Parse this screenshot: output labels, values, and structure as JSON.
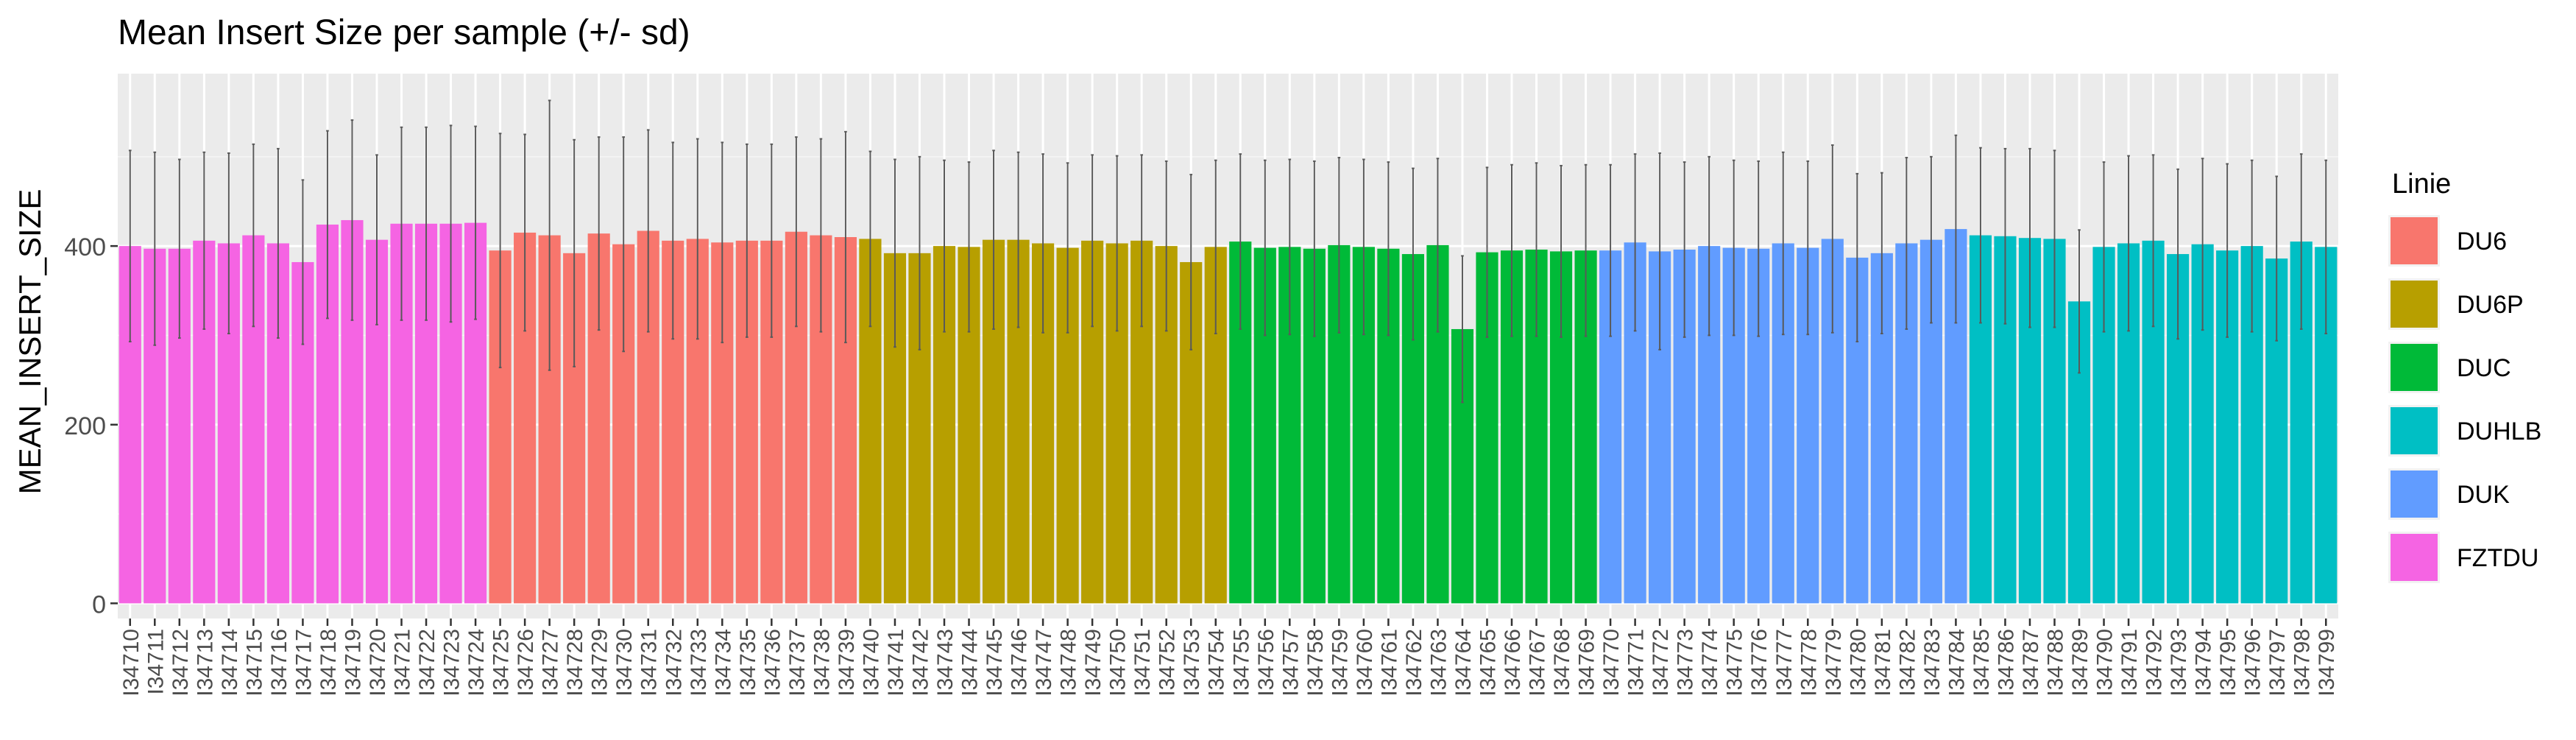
{
  "chart_data": {
    "type": "bar",
    "title": "Mean Insert Size per sample (+/- sd)",
    "xlabel": "",
    "ylabel": "MEAN_INSERT_SIZE",
    "ylim": [
      -17,
      593
    ],
    "yticks": [
      0,
      200,
      400
    ],
    "grid": true,
    "legend": {
      "title": "Linie",
      "position": "right"
    },
    "group_colors": {
      "DU6": "#F8766D",
      "DU6P": "#B79F00",
      "DUC": "#00BA38",
      "DUHLB": "#00BFC4",
      "DUK": "#619CFF",
      "FZTDU": "#F564E3"
    },
    "legend_entries": [
      "DU6",
      "DU6P",
      "DUC",
      "DUHLB",
      "DUK",
      "FZTDU"
    ],
    "categories": [
      "I34710",
      "I34711",
      "I34712",
      "I34713",
      "I34714",
      "I34715",
      "I34716",
      "I34717",
      "I34718",
      "I34719",
      "I34720",
      "I34721",
      "I34722",
      "I34723",
      "I34724",
      "I34725",
      "I34726",
      "I34727",
      "I34728",
      "I34729",
      "I34730",
      "I34731",
      "I34732",
      "I34733",
      "I34734",
      "I34735",
      "I34736",
      "I34737",
      "I34738",
      "I34739",
      "I34740",
      "I34741",
      "I34742",
      "I34743",
      "I34744",
      "I34745",
      "I34746",
      "I34747",
      "I34748",
      "I34749",
      "I34750",
      "I34751",
      "I34752",
      "I34753",
      "I34754",
      "I34755",
      "I34756",
      "I34757",
      "I34758",
      "I34759",
      "I34760",
      "I34761",
      "I34762",
      "I34763",
      "I34764",
      "I34765",
      "I34766",
      "I34767",
      "I34768",
      "I34769",
      "I34770",
      "I34771",
      "I34772",
      "I34773",
      "I34774",
      "I34775",
      "I34776",
      "I34777",
      "I34778",
      "I34779",
      "I34780",
      "I34781",
      "I34782",
      "I34783",
      "I34784",
      "I34785",
      "I34786",
      "I34787",
      "I34788",
      "I34789",
      "I34790",
      "I34791",
      "I34792",
      "I34793",
      "I34794",
      "I34795",
      "I34796",
      "I34797",
      "I34798",
      "I34799"
    ],
    "groups": [
      "FZTDU",
      "FZTDU",
      "FZTDU",
      "FZTDU",
      "FZTDU",
      "FZTDU",
      "FZTDU",
      "FZTDU",
      "FZTDU",
      "FZTDU",
      "FZTDU",
      "FZTDU",
      "FZTDU",
      "FZTDU",
      "FZTDU",
      "DU6",
      "DU6",
      "DU6",
      "DU6",
      "DU6",
      "DU6",
      "DU6",
      "DU6",
      "DU6",
      "DU6",
      "DU6",
      "DU6",
      "DU6",
      "DU6",
      "DU6",
      "DU6P",
      "DU6P",
      "DU6P",
      "DU6P",
      "DU6P",
      "DU6P",
      "DU6P",
      "DU6P",
      "DU6P",
      "DU6P",
      "DU6P",
      "DU6P",
      "DU6P",
      "DU6P",
      "DU6P",
      "DUC",
      "DUC",
      "DUC",
      "DUC",
      "DUC",
      "DUC",
      "DUC",
      "DUC",
      "DUC",
      "DUC",
      "DUC",
      "DUC",
      "DUC",
      "DUC",
      "DUC",
      "DUK",
      "DUK",
      "DUK",
      "DUK",
      "DUK",
      "DUK",
      "DUK",
      "DUK",
      "DUK",
      "DUK",
      "DUK",
      "DUK",
      "DUK",
      "DUK",
      "DUK",
      "DUHLB",
      "DUHLB",
      "DUHLB",
      "DUHLB",
      "DUHLB",
      "DUHLB",
      "DUHLB",
      "DUHLB",
      "DUHLB",
      "DUHLB",
      "DUHLB",
      "DUHLB",
      "DUHLB",
      "DUHLB",
      "DUHLB"
    ],
    "values": [
      400,
      397,
      397,
      406,
      403,
      412,
      403,
      382,
      424,
      429,
      407,
      425,
      425,
      425,
      426,
      395,
      415,
      412,
      392,
      414,
      402,
      417,
      406,
      408,
      404,
      406,
      406,
      416,
      412,
      410,
      408,
      392,
      392,
      400,
      399,
      407,
      407,
      403,
      398,
      406,
      403,
      406,
      400,
      382,
      399,
      405,
      398,
      399,
      397,
      401,
      399,
      397,
      391,
      401,
      307,
      393,
      395,
      396,
      394,
      395,
      395,
      404,
      394,
      396,
      400,
      398,
      397,
      403,
      398,
      408,
      387,
      392,
      403,
      407,
      419,
      412,
      411,
      409,
      408,
      338,
      399,
      403,
      406,
      391,
      402,
      395,
      400,
      386,
      405,
      399
    ],
    "sd": [
      107,
      108,
      100,
      99,
      101,
      102,
      106,
      92,
      105,
      112,
      95,
      108,
      108,
      110,
      108,
      131,
      110,
      151,
      127,
      108,
      120,
      113,
      110,
      112,
      112,
      108,
      108,
      106,
      108,
      118,
      98,
      105,
      108,
      96,
      95,
      100,
      98,
      100,
      95,
      96,
      98,
      96,
      95,
      98,
      97,
      98,
      98,
      98,
      98,
      98,
      98,
      97,
      96,
      97,
      82,
      95,
      96,
      97,
      96,
      96,
      96,
      99,
      110,
      98,
      100,
      98,
      98,
      102,
      97,
      105,
      94,
      90,
      96,
      93,
      105,
      98,
      98,
      100,
      99,
      80,
      95,
      98,
      96,
      95,
      96,
      97,
      96,
      92,
      98,
      97
    ]
  }
}
